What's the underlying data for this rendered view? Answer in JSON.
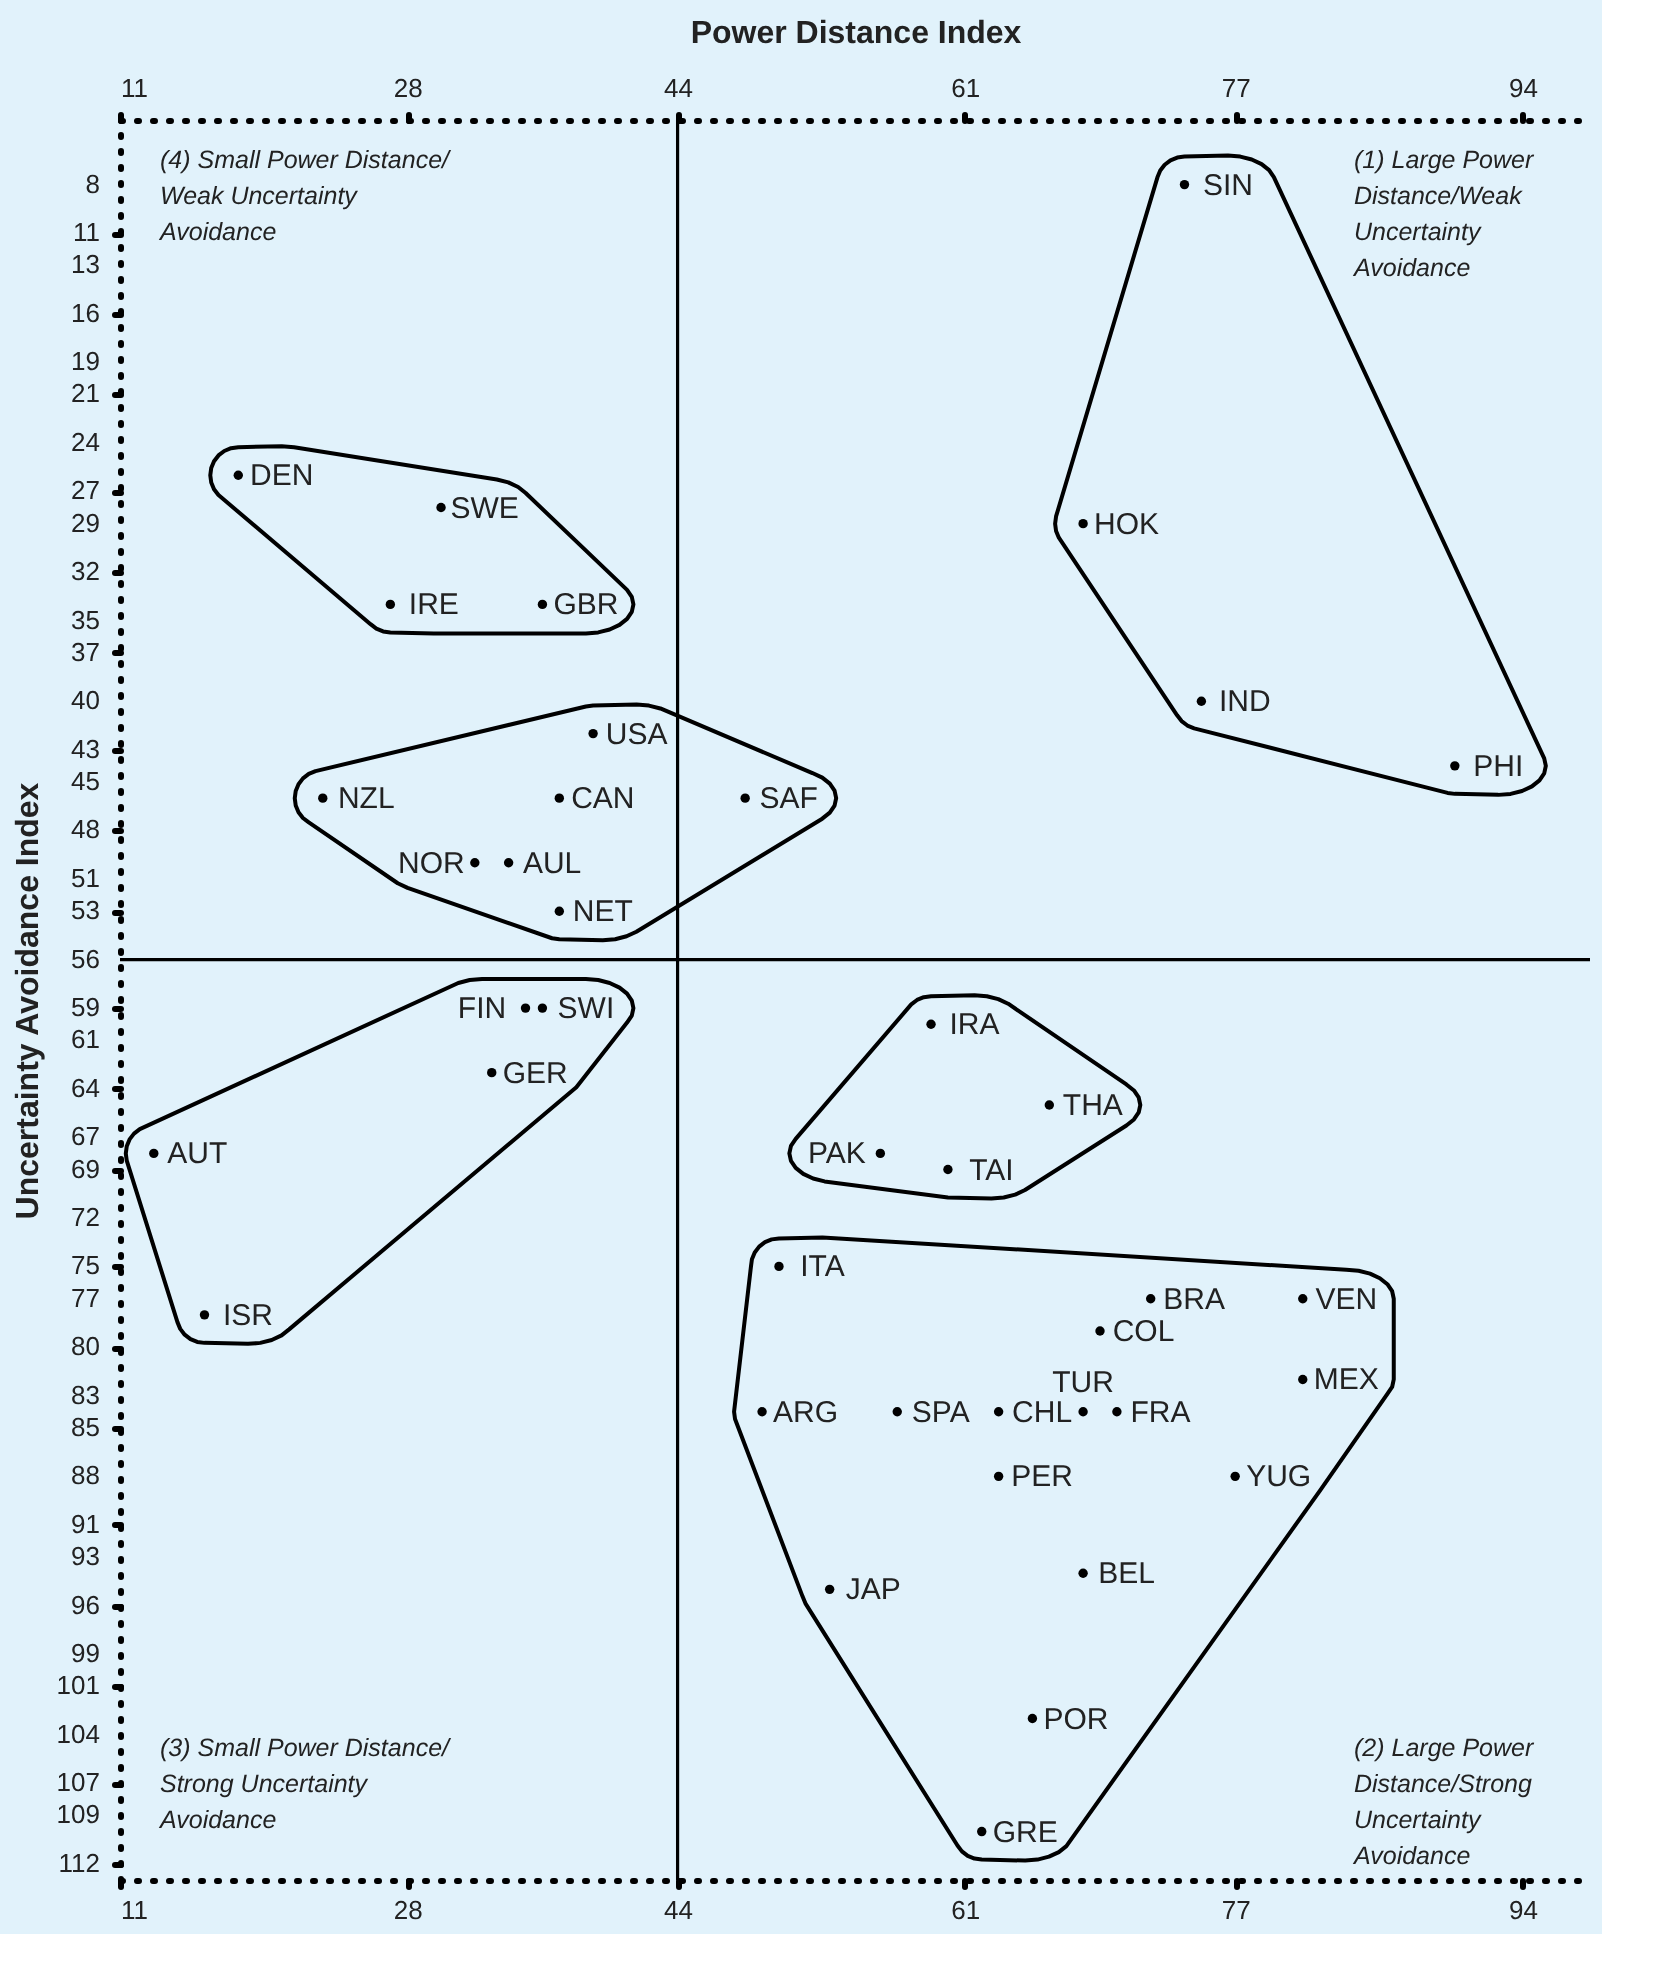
{
  "chart_data": {
    "type": "scatter",
    "x2label": "Power Distance Index",
    "ylabel": "Uncertainty Avoidance Index",
    "xlim": [
      11,
      98
    ],
    "xticks": [
      11,
      28,
      44,
      61,
      77,
      94
    ],
    "x2lim": [
      11,
      98
    ],
    "x2ticks": [
      11,
      28,
      44,
      61,
      77,
      94
    ],
    "ylim": [
      113,
      4
    ],
    "yticks": [
      8,
      11,
      13,
      16,
      19,
      21,
      24,
      27,
      29,
      32,
      35,
      37,
      40,
      43,
      45,
      48,
      51,
      53,
      56,
      59,
      61,
      64,
      67,
      69,
      72,
      75,
      77,
      80,
      83,
      85,
      88,
      91,
      93,
      96,
      99,
      101,
      104,
      107,
      109,
      112
    ],
    "grid": false,
    "marker": "circle",
    "series": [
      {
        "color": "#000000",
        "x": [
          74,
          68,
          75,
          90
        ],
        "values": [
          8,
          29,
          40,
          44
        ],
        "value_labels": [
          "SIN",
          "HOK",
          "IND",
          "PHI"
        ]
      },
      {
        "color": "#000000",
        "x": [
          18,
          30,
          27,
          36
        ],
        "values": [
          26,
          28,
          34,
          34
        ],
        "value_labels": [
          "DEN",
          "SWE",
          "IRE",
          "GBR"
        ]
      },
      {
        "color": "#000000",
        "x": [
          23,
          39,
          37,
          32,
          34,
          37,
          48
        ],
        "values": [
          46,
          42,
          46,
          50,
          50,
          53,
          46
        ],
        "value_labels": [
          "NZL",
          "USA",
          "CAN",
          "NOR",
          "AUL",
          "NET",
          "SAF"
        ]
      },
      {
        "color": "#000000",
        "x": [
          35,
          36,
          33,
          13,
          16
        ],
        "values": [
          59,
          59,
          63,
          68,
          78
        ],
        "value_labels": [
          "FIN",
          "SWI",
          "GER",
          "AUT",
          "ISR"
        ]
      },
      {
        "color": "#000000",
        "x": [
          59,
          66,
          56,
          60
        ],
        "values": [
          60,
          65,
          68,
          69
        ],
        "value_labels": [
          "IRA",
          "THA",
          "PAK",
          "TAI"
        ]
      },
      {
        "color": "#000000",
        "x": [
          50,
          72,
          81,
          69,
          81,
          49,
          57,
          63,
          68,
          70,
          63,
          77,
          53,
          68,
          65,
          62
        ],
        "values": [
          75,
          77,
          77,
          79,
          82,
          84,
          84,
          84,
          84,
          84,
          88,
          88,
          95,
          94,
          103,
          110
        ],
        "value_labels": [
          "ITA",
          "BRA",
          "VEN",
          "COL",
          "MEX",
          "ARG",
          "SPA",
          "CHL",
          "TUR",
          "FRA",
          "PER",
          "YUG",
          "JAP",
          "BEL",
          "POR",
          "GRE"
        ]
      }
    ],
    "ref_lines": [
      {
        "axis": "x",
        "value": 44,
        "color": "#000000"
      },
      {
        "axis": "y",
        "value": 56,
        "color": "#000000"
      }
    ],
    "annotations": [
      "(4) Small Power Distance/\nWeak Uncertainty\nAvoidance",
      "(1) Large Power\nDistance/Weak\nUncertainty\nAvoidance",
      "(3) Small Power Distance/\nStrong Uncertainty\nAvoidance",
      "(2) Large Power\nDistance/Strong\nUncertainty\nAvoidance"
    ]
  }
}
